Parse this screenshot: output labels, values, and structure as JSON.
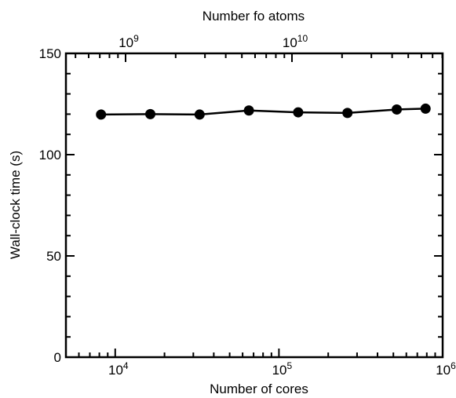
{
  "chart_data": {
    "type": "line",
    "title": "",
    "xlabel": "Number of cores",
    "ylabel": "Wall-clock time (s)",
    "top_xlabel": "Number fo atoms",
    "x_scale": "log",
    "xlim": [
      5000,
      1000000
    ],
    "top_x_scale": "log",
    "top_ticks": [
      {
        "value": 1000000000,
        "base": "10",
        "exp": "9"
      },
      {
        "value": 10000000000,
        "base": "10",
        "exp": "10"
      }
    ],
    "ylim": [
      0,
      150
    ],
    "y_ticks": [
      0,
      50,
      100,
      150
    ],
    "x_ticks": [
      {
        "value": 10000,
        "base": "10",
        "exp": "4"
      },
      {
        "value": 100000,
        "base": "10",
        "exp": "5"
      },
      {
        "value": 1000000,
        "base": "10",
        "exp": "6"
      }
    ],
    "grid": false,
    "series": [
      {
        "x": [
          8192,
          16384,
          32768,
          65536,
          131072,
          262144,
          524288,
          786432
        ],
        "y": [
          119.8,
          120.0,
          119.8,
          121.8,
          120.9,
          120.6,
          122.3,
          122.7
        ]
      }
    ],
    "colors": {
      "line": "#000000",
      "marker": "#000000"
    }
  }
}
